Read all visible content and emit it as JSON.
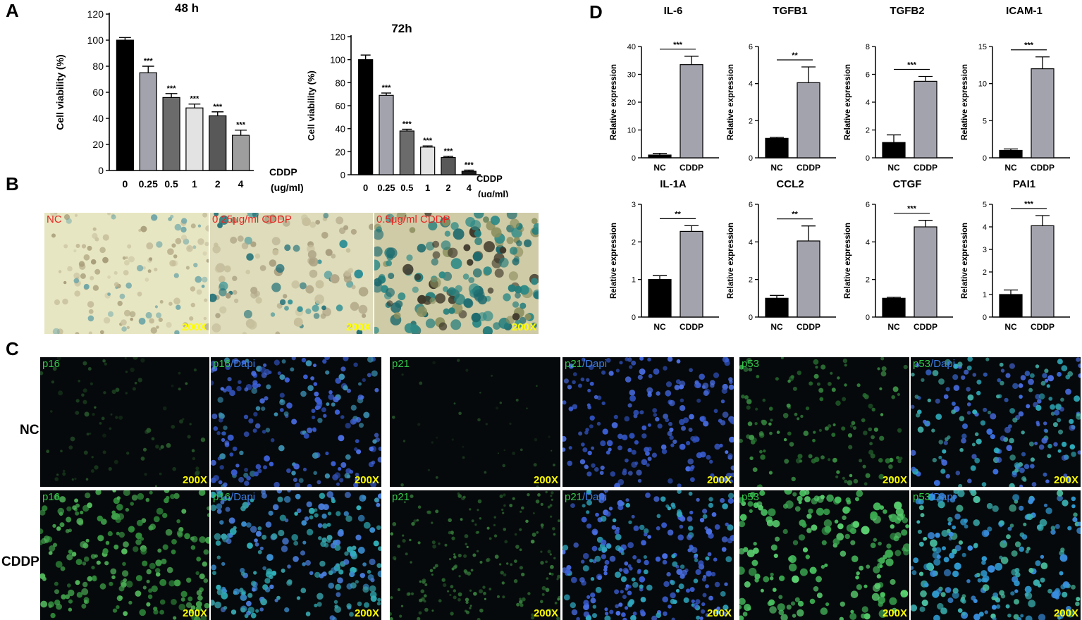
{
  "panel_letters": {
    "a": "A",
    "b": "B",
    "c": "C",
    "d": "D"
  },
  "colors": {
    "bar_dark": "#000000",
    "bar_gray": "#a3a3ad",
    "bar_mid": "#6b6b6b",
    "bar_light": "#e3e3e3",
    "bar_dim": "#585858",
    "bar_lightgray": "#9e9e9e",
    "bar_black": "#1a1a1a",
    "beta_gal_label": "#e8231f",
    "magnification": "#ffff00",
    "p_marker_green": "#32c94a",
    "dapi_blue": "#3b7ee8"
  },
  "chart_data": [
    {
      "id": "A1",
      "type": "bar",
      "title": "48 h",
      "xlabel": "CDDP\n(ug/ml)",
      "ylabel": "Cell viability (%)",
      "categories": [
        "0",
        "0.25",
        "0.5",
        "1",
        "2",
        "4"
      ],
      "values": [
        100,
        75,
        56,
        48,
        42,
        27
      ],
      "errors": [
        2,
        5,
        3,
        3,
        3,
        4
      ],
      "significance": [
        "",
        "***",
        "***",
        "***",
        "***",
        "***"
      ],
      "bar_colors": [
        "#000000",
        "#a3a3ad",
        "#6b6b6b",
        "#e3e3e3",
        "#585858",
        "#9e9e9e"
      ],
      "ylim": [
        0,
        120
      ],
      "yticks": [
        0,
        20,
        40,
        60,
        80,
        100,
        120
      ]
    },
    {
      "id": "A2",
      "type": "bar",
      "title": "72h",
      "xlabel": "CDDP\n(ug/ml)",
      "ylabel": "Cell viability (%)",
      "categories": [
        "0",
        "0.25",
        "0.5",
        "1",
        "2",
        "4"
      ],
      "values": [
        100,
        69,
        38,
        24,
        15,
        3
      ],
      "errors": [
        4,
        2,
        1.5,
        1,
        1,
        1
      ],
      "significance": [
        "",
        "***",
        "***",
        "***",
        "***",
        "***"
      ],
      "bar_colors": [
        "#000000",
        "#a3a3ad",
        "#6b6b6b",
        "#e3e3e3",
        "#585858",
        "#1a1a1a"
      ],
      "ylim": [
        0,
        120
      ],
      "yticks": [
        0,
        20,
        40,
        60,
        80,
        100,
        120
      ]
    },
    {
      "id": "D-IL-6",
      "type": "bar",
      "title": "IL-6",
      "ylabel": "Relative   expression",
      "categories": [
        "NC",
        "CDDP"
      ],
      "values": [
        1,
        33.5
      ],
      "errors": [
        0.6,
        3
      ],
      "significance": "***",
      "ylim": [
        0,
        40
      ],
      "yticks": [
        0,
        10,
        20,
        30,
        40
      ]
    },
    {
      "id": "D-TGFB1",
      "type": "bar",
      "title": "TGFB1",
      "ylabel": "Relative   expression",
      "categories": [
        "NC",
        "CDDP"
      ],
      "values": [
        1.05,
        4.05
      ],
      "errors": [
        0.05,
        0.85
      ],
      "significance": "**",
      "ylim": [
        0,
        6
      ],
      "yticks": [
        0,
        2,
        4,
        6
      ]
    },
    {
      "id": "D-TGFB2",
      "type": "bar",
      "title": "TGFB2",
      "ylabel": "Relative   expression",
      "categories": [
        "NC",
        "CDDP"
      ],
      "values": [
        1.1,
        5.5
      ],
      "errors": [
        0.55,
        0.35
      ],
      "significance": "***",
      "ylim": [
        0,
        8
      ],
      "yticks": [
        0,
        2,
        4,
        6,
        8
      ]
    },
    {
      "id": "D-ICAM-1",
      "type": "bar",
      "title": "ICAM-1",
      "ylabel": "Relative   expression",
      "categories": [
        "NC",
        "CDDP"
      ],
      "values": [
        1,
        12
      ],
      "errors": [
        0.2,
        1.6
      ],
      "significance": "***",
      "ylim": [
        0,
        15
      ],
      "yticks": [
        0,
        5,
        10,
        15
      ]
    },
    {
      "id": "D-IL-1A",
      "type": "bar",
      "title": "IL-1A",
      "ylabel": "Relative   expression",
      "categories": [
        "NC",
        "CDDP"
      ],
      "values": [
        1,
        2.28
      ],
      "errors": [
        0.1,
        0.15
      ],
      "significance": "**",
      "ylim": [
        0,
        3
      ],
      "yticks": [
        0,
        1,
        2,
        3
      ]
    },
    {
      "id": "D-CCL2",
      "type": "bar",
      "title": "CCL2",
      "ylabel": "Relative   expression",
      "categories": [
        "NC",
        "CDDP"
      ],
      "values": [
        1,
        4.05
      ],
      "errors": [
        0.15,
        0.8
      ],
      "significance": "**",
      "ylim": [
        0,
        6
      ],
      "yticks": [
        0,
        2,
        4,
        6
      ]
    },
    {
      "id": "D-CTGF",
      "type": "bar",
      "title": "CTGF",
      "ylabel": "Relative   expression",
      "categories": [
        "NC",
        "CDDP"
      ],
      "values": [
        1,
        4.8
      ],
      "errors": [
        0.05,
        0.35
      ],
      "significance": "***",
      "ylim": [
        0,
        6
      ],
      "yticks": [
        0,
        2,
        4,
        6
      ]
    },
    {
      "id": "D-PAI1",
      "type": "bar",
      "title": "PAI1",
      "ylabel": "Relative   expression",
      "categories": [
        "NC",
        "CDDP"
      ],
      "values": [
        1,
        4.05
      ],
      "errors": [
        0.2,
        0.45
      ],
      "significance": "***",
      "ylim": [
        0,
        5
      ],
      "yticks": [
        0,
        1,
        2,
        3,
        4,
        5
      ]
    }
  ],
  "beta_gal_images": [
    {
      "label": "NC",
      "magnification": "200X",
      "density": "low"
    },
    {
      "label": "0.25μg/ml CDDP",
      "magnification": "200X",
      "density": "medium"
    },
    {
      "label": "0.5μg/ml CDDP",
      "magnification": "200X",
      "density": "high"
    }
  ],
  "if_row_labels": {
    "nc": "NC",
    "cddp": "CDDP"
  },
  "if_images": {
    "nc": [
      {
        "marker": "p16",
        "merge": false,
        "magnification": "200X"
      },
      {
        "marker": "p16",
        "merge_suffix": "/Dapi",
        "merge": true,
        "magnification": "200X"
      },
      {
        "marker": "p21",
        "merge": false,
        "magnification": "200X"
      },
      {
        "marker": "p21",
        "merge_suffix": "/Dapi",
        "merge": true,
        "magnification": "200X"
      },
      {
        "marker": "p53",
        "merge": false,
        "magnification": "200X"
      },
      {
        "marker": "p53",
        "merge_suffix": "/Dapi",
        "merge": true,
        "magnification": "200X"
      }
    ],
    "cddp": [
      {
        "marker": "p16",
        "merge": false,
        "magnification": "200X"
      },
      {
        "marker": "p16",
        "merge_suffix": "/Dapi",
        "merge": true,
        "magnification": "200X"
      },
      {
        "marker": "p21",
        "merge": false,
        "magnification": "200X"
      },
      {
        "marker": "p21",
        "merge_suffix": "/Dapi",
        "merge": true,
        "magnification": "200X"
      },
      {
        "marker": "p53",
        "merge": false,
        "magnification": "200X"
      },
      {
        "marker": "p53",
        "merge_suffix": "/Dapi",
        "merge": true,
        "magnification": "200X"
      }
    ]
  }
}
